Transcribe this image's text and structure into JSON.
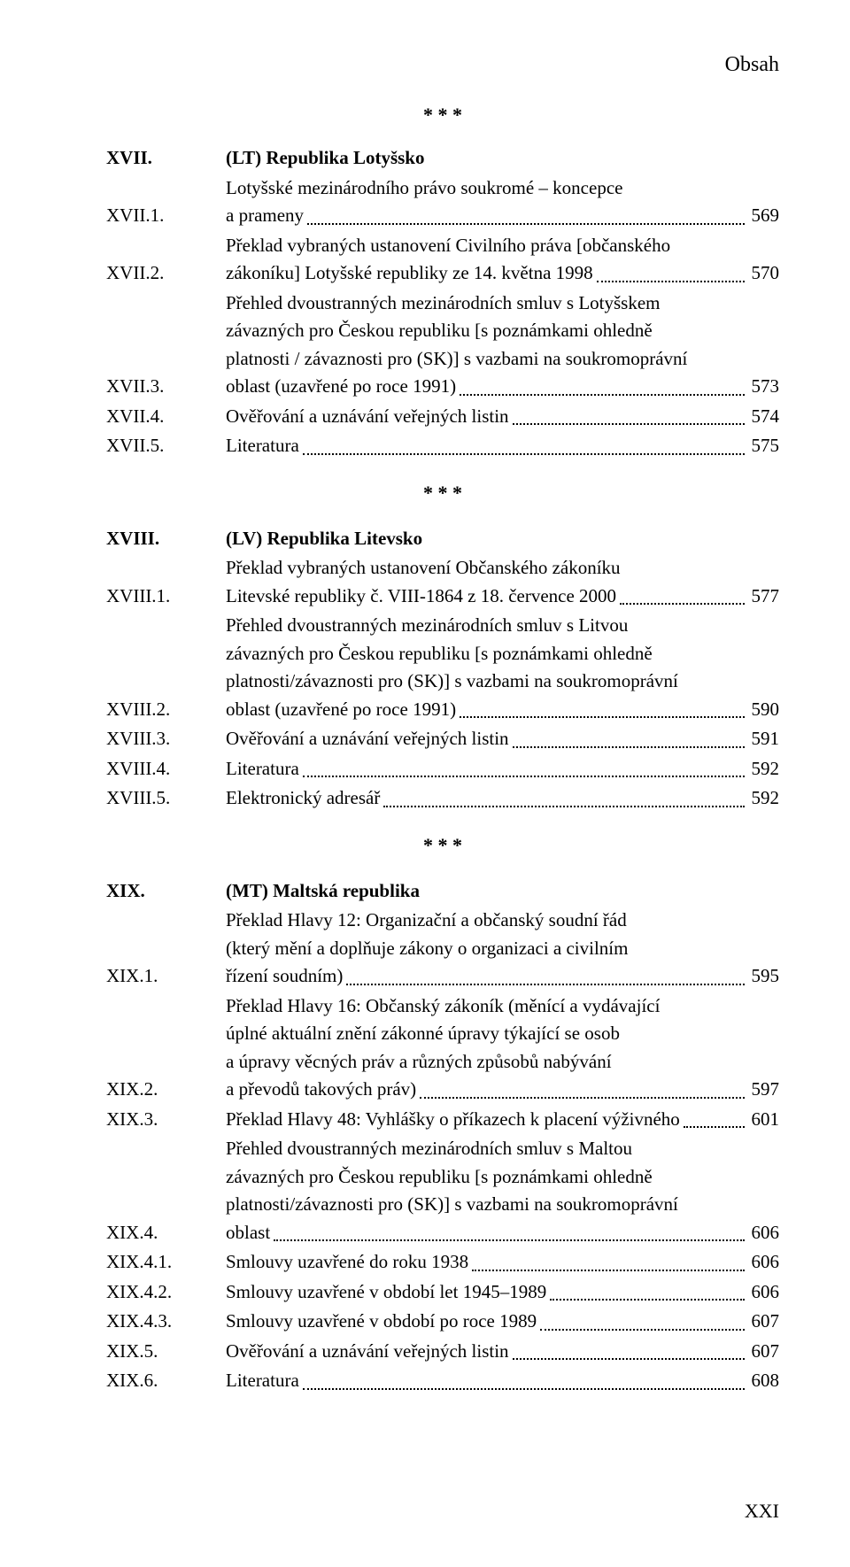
{
  "header_right": "Obsah",
  "footer": "XXI",
  "separator": "* * *",
  "sections": [
    {
      "items": [
        {
          "label": "XVII.",
          "title": true,
          "lines": [
            "(LT) Republika Lotyšsko"
          ],
          "page": null
        },
        {
          "label": "XVII.1.",
          "lines": [
            "Lotyšské mezinárodního právo soukromé – koncepce",
            "a prameny"
          ],
          "page": "569"
        },
        {
          "label": "XVII.2.",
          "lines": [
            "Překlad vybraných ustanovení Civilního práva [občanského",
            "zákoníku] Lotyšské republiky ze 14. května 1998"
          ],
          "page": "570"
        },
        {
          "label": "XVII.3.",
          "lines": [
            "Přehled dvoustranných mezinárodních smluv s Lotyšskem",
            "závazných pro Českou republiku [s poznámkami ohledně",
            "platnosti / závaznosti pro (SK)] s vazbami na soukromoprávní",
            "oblast (uzavřené po roce 1991)"
          ],
          "page": "573"
        },
        {
          "label": "XVII.4.",
          "lines": [
            "Ověřování a uznávání veřejných listin"
          ],
          "page": "574"
        },
        {
          "label": "XVII.5.",
          "lines": [
            "Literatura"
          ],
          "page": "575"
        }
      ]
    },
    {
      "items": [
        {
          "label": "XVIII.",
          "title": true,
          "lines": [
            "(LV) Republika Litevsko"
          ],
          "page": null
        },
        {
          "label": "XVIII.1.",
          "lines": [
            "Překlad vybraných ustanovení Občanského zákoníku",
            "Litevské republiky č. VIII-1864 z 18. července 2000"
          ],
          "page": "577"
        },
        {
          "label": "XVIII.2.",
          "lines": [
            "Přehled dvoustranných mezinárodních smluv s Litvou",
            "závazných pro Českou republiku [s poznámkami ohledně",
            "platnosti/závaznosti pro (SK)] s vazbami na soukromoprávní",
            "oblast (uzavřené po roce 1991)"
          ],
          "page": "590"
        },
        {
          "label": "XVIII.3.",
          "lines": [
            "Ověřování a uznávání veřejných listin"
          ],
          "page": "591"
        },
        {
          "label": "XVIII.4.",
          "lines": [
            "Literatura"
          ],
          "page": "592"
        },
        {
          "label": "XVIII.5.",
          "lines": [
            "Elektronický adresář"
          ],
          "page": "592"
        }
      ]
    },
    {
      "items": [
        {
          "label": "XIX.",
          "title": true,
          "lines": [
            "(MT) Maltská republika"
          ],
          "page": null
        },
        {
          "label": "XIX.1.",
          "lines": [
            "Překlad Hlavy 12: Organizační a občanský soudní řád",
            "(který mění a doplňuje zákony o organizaci a civilním",
            "řízení soudním)"
          ],
          "page": "595"
        },
        {
          "label": "XIX.2.",
          "lines": [
            "Překlad Hlavy 16: Občanský zákoník (měnící a vydávající",
            "úplné aktuální znění zákonné úpravy týkající se osob",
            "a úpravy věcných práv a různých způsobů nabývání",
            "a převodů takových práv)"
          ],
          "page": "597"
        },
        {
          "label": "XIX.3.",
          "lines": [
            "Překlad Hlavy 48: Vyhlášky o příkazech k placení výživného"
          ],
          "page": "601"
        },
        {
          "label": "XIX.4.",
          "lines": [
            "Přehled dvoustranných mezinárodních smluv s Maltou",
            "závazných pro Českou republiku [s poznámkami ohledně",
            "platnosti/závaznosti pro (SK)] s vazbami na soukromoprávní",
            "oblast"
          ],
          "page": "606"
        },
        {
          "label": "XIX.4.1.",
          "lines": [
            "Smlouvy uzavřené do roku 1938"
          ],
          "page": "606"
        },
        {
          "label": "XIX.4.2.",
          "lines": [
            "Smlouvy uzavřené v období let 1945–1989"
          ],
          "page": "606"
        },
        {
          "label": "XIX.4.3.",
          "lines": [
            "Smlouvy uzavřené v období po roce 1989"
          ],
          "page": "607"
        },
        {
          "label": "XIX.5.",
          "lines": [
            "Ověřování a uznávání veřejných listin"
          ],
          "page": "607"
        },
        {
          "label": "XIX.6.",
          "lines": [
            "Literatura"
          ],
          "page": "608"
        }
      ]
    }
  ]
}
